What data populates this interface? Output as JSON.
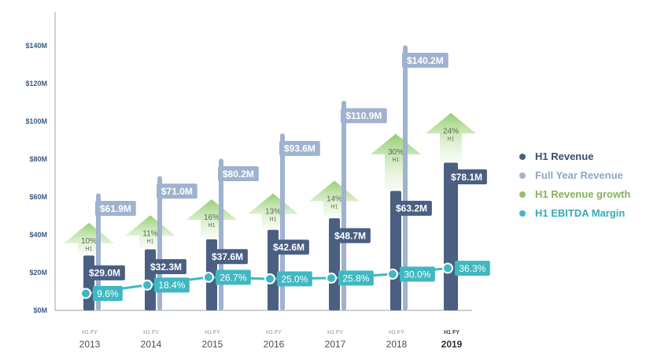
{
  "chart_data": {
    "type": "bar",
    "categories": [
      "2013",
      "2014",
      "2015",
      "2016",
      "2017",
      "2018",
      "2019"
    ],
    "category_sub_labels": [
      "H1  FY",
      "H1  FY",
      "H1  FY",
      "H1  FY",
      "H1  FY",
      "H1  FY",
      "H1 FY"
    ],
    "highlight_category": "2019",
    "ylim": [
      0,
      150
    ],
    "yticks": [
      {
        "value": 0,
        "label": "$0M"
      },
      {
        "value": 20,
        "label": "$20M"
      },
      {
        "value": 40,
        "label": "$40M"
      },
      {
        "value": 60,
        "label": "$60M"
      },
      {
        "value": 80,
        "label": "$80M"
      },
      {
        "value": 100,
        "label": "$100M"
      },
      {
        "value": 120,
        "label": "$120M"
      },
      {
        "value": 140,
        "label": "$140M"
      }
    ],
    "series": [
      {
        "name": "H1 Revenue",
        "color": "#4a5f82",
        "values": [
          29.0,
          32.3,
          37.6,
          42.6,
          48.7,
          63.2,
          78.1
        ],
        "labels": [
          "$29.0M",
          "$32.3M",
          "$37.6M",
          "$42.6M",
          "$48.7M",
          "$63.2M",
          "$78.1M"
        ]
      },
      {
        "name": "Full Year Revenue",
        "color": "#9fb2cf",
        "values": [
          61.9,
          71.0,
          80.2,
          93.6,
          110.9,
          140.2,
          null
        ],
        "labels": [
          "$61.9M",
          "$71.0M",
          "$80.2M",
          "$93.6M",
          "$110.9M",
          "$140.2M",
          ""
        ]
      },
      {
        "name": "H1 Revenue growth",
        "color": "#8fbf6a",
        "values": [
          10,
          11,
          16,
          13,
          14,
          30,
          24
        ],
        "labels": [
          "10%",
          "11%",
          "16%",
          "13%",
          "14%",
          "30%",
          "24%"
        ],
        "sub_label": "H1"
      },
      {
        "name": "H1 EBITDA Margin",
        "color": "#3fb8c2",
        "values": [
          9.6,
          18.4,
          26.7,
          25.0,
          25.8,
          30.0,
          36.3
        ],
        "labels": [
          "9.6%",
          "18.4%",
          "26.7%",
          "25.0%",
          "25.8%",
          "30.0%",
          "36.3%"
        ]
      }
    ],
    "legend": [
      {
        "label": "H1 Revenue",
        "color": "#4a5f82",
        "text_color": "#3a4f70"
      },
      {
        "label": "Full Year Revenue",
        "color": "#9fb2cf",
        "text_color": "#8fa5c5"
      },
      {
        "label": "H1 Revenue growth",
        "color": "#8fbf6a",
        "text_color": "#86b05e"
      },
      {
        "label": "H1 EBITDA Margin",
        "color": "#3fb8c2",
        "text_color": "#36aab5"
      }
    ],
    "legend_position": "right",
    "grid": false
  }
}
